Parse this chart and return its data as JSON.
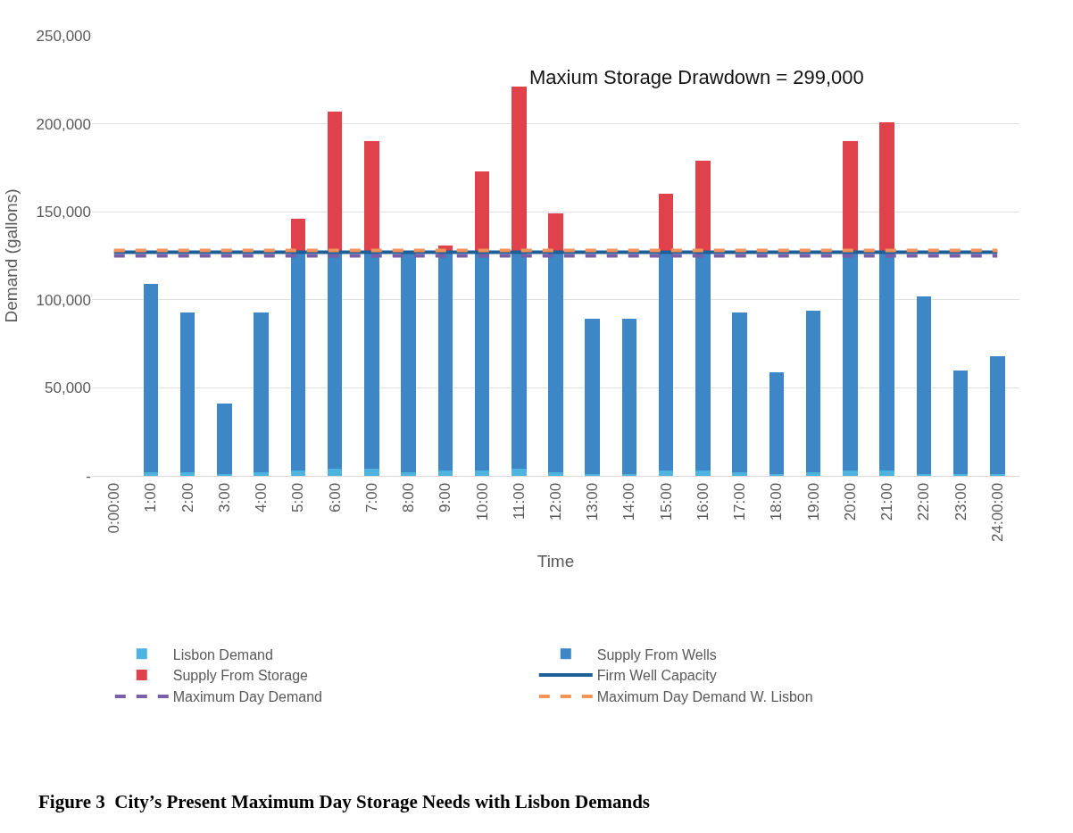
{
  "chart_data": {
    "type": "bar",
    "stacked": true,
    "ylabel": "Demand (gallons)",
    "xlabel": "Time",
    "categories": [
      "0:00:00",
      "1:00",
      "2:00",
      "3:00",
      "4:00",
      "5:00",
      "6:00",
      "7:00",
      "8:00",
      "9:00",
      "10:00",
      "11:00",
      "12:00",
      "13:00",
      "14:00",
      "15:00",
      "16:00",
      "17:00",
      "18:00",
      "19:00",
      "20:00",
      "21:00",
      "22:00",
      "23:00",
      "24:00:00"
    ],
    "series": [
      {
        "name": "Lisbon Demand",
        "color": "#4fb3e0",
        "values": [
          null,
          2000,
          2000,
          1000,
          2000,
          3000,
          4000,
          4000,
          2000,
          3000,
          3000,
          4000,
          2000,
          1000,
          1000,
          3000,
          3000,
          2000,
          1000,
          2000,
          3000,
          3000,
          1000,
          1000,
          1000
        ]
      },
      {
        "name": "Supply From Wells",
        "color": "#3d87c6",
        "values": [
          null,
          107000,
          91000,
          40000,
          91000,
          124000,
          123000,
          123000,
          125000,
          124000,
          124000,
          123000,
          125000,
          88000,
          88000,
          124000,
          124000,
          91000,
          58000,
          92000,
          124000,
          124000,
          101000,
          59000,
          67000
        ]
      },
      {
        "name": "Supply From Storage",
        "color": "#e0424b",
        "values": [
          null,
          null,
          null,
          null,
          null,
          19000,
          80000,
          63000,
          null,
          4000,
          46000,
          94000,
          22000,
          null,
          null,
          33000,
          52000,
          null,
          null,
          null,
          63000,
          74000,
          null,
          null,
          null
        ]
      },
      {
        "name": "Firm Well Capacity",
        "type": "line",
        "color": "#1f5f99",
        "line_style": "solid",
        "values": [
          127000,
          127000,
          127000,
          127000,
          127000,
          127000,
          127000,
          127000,
          127000,
          127000,
          127000,
          127000,
          127000,
          127000,
          127000,
          127000,
          127000,
          127000,
          127000,
          127000,
          127000,
          127000,
          127000,
          127000,
          127000
        ]
      },
      {
        "name": "Maximum Day Demand",
        "type": "line",
        "color": "#7a5fa8",
        "line_style": "dashed",
        "values": [
          125000,
          125000,
          125000,
          125000,
          125000,
          125000,
          125000,
          125000,
          125000,
          125000,
          125000,
          125000,
          125000,
          125000,
          125000,
          125000,
          125000,
          125000,
          125000,
          125000,
          125000,
          125000,
          125000,
          125000,
          125000
        ]
      },
      {
        "name": "Maximum Day Demand W. Lisbon",
        "type": "line",
        "color": "#f4925a",
        "line_style": "dashed",
        "values": [
          128000,
          128000,
          128000,
          128000,
          128000,
          128000,
          128000,
          128000,
          128000,
          128000,
          128000,
          128000,
          128000,
          128000,
          128000,
          128000,
          128000,
          128000,
          128000,
          128000,
          128000,
          128000,
          128000,
          128000,
          128000
        ]
      }
    ],
    "ylim": [
      0,
      250000
    ],
    "yticks": [
      {
        "value": 0,
        "label": "-"
      },
      {
        "value": 50000,
        "label": "50,000"
      },
      {
        "value": 100000,
        "label": "100,000"
      },
      {
        "value": 150000,
        "label": "150,000"
      },
      {
        "value": 200000,
        "label": "200,000"
      },
      {
        "value": 250000,
        "label": "250,000"
      }
    ],
    "grid": "y",
    "legend": "bottom",
    "marker": "none",
    "annotations": [
      "Maxium Storage Drawdown = 299,000",
      "Figure 3  City’s Present Maximum Day Storage Needs with Lisbon Demands"
    ]
  }
}
